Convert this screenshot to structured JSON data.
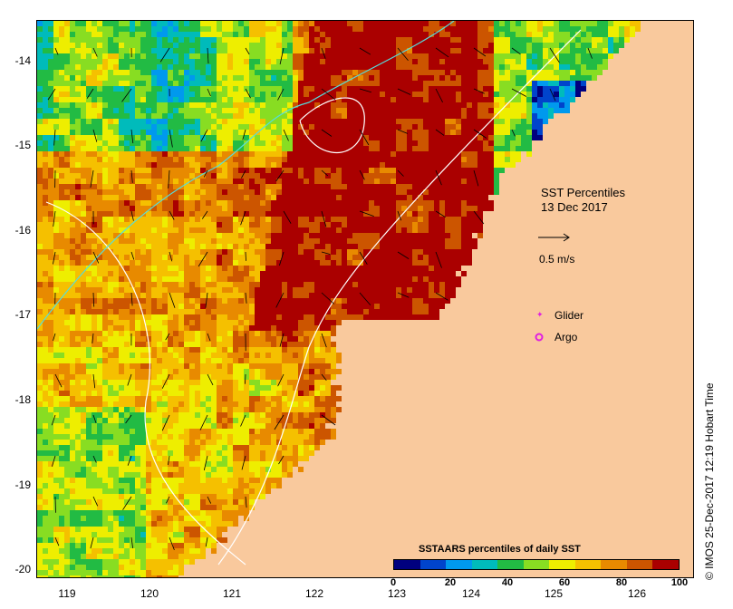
{
  "map": {
    "title_line1": "SST Percentiles",
    "title_line2": "13 Dec 2017",
    "scale_label": "0.5 m/s",
    "glider_label": "Glider",
    "argo_label": "Argo",
    "credit": "© IMOS 25-Dec-2017 12:19 Hobart Time",
    "land_color": "#f9c99d",
    "longitudes": [
      "119",
      "120",
      "121",
      "122",
      "123",
      "124",
      "125",
      "126"
    ],
    "latitudes": [
      "-14",
      "-15",
      "-16",
      "-17",
      "-18",
      "-19",
      "-20"
    ]
  },
  "legend": {
    "title": "SSTAARS percentiles of daily SST",
    "ticks": [
      "0",
      "20",
      "40",
      "60",
      "80",
      "100"
    ],
    "colors": [
      "#00007f",
      "#0044cc",
      "#0099ee",
      "#00bbbb",
      "#22bb44",
      "#88dd22",
      "#eeee00",
      "#f5c000",
      "#e88a00",
      "#cc5500",
      "#aa0000"
    ]
  }
}
